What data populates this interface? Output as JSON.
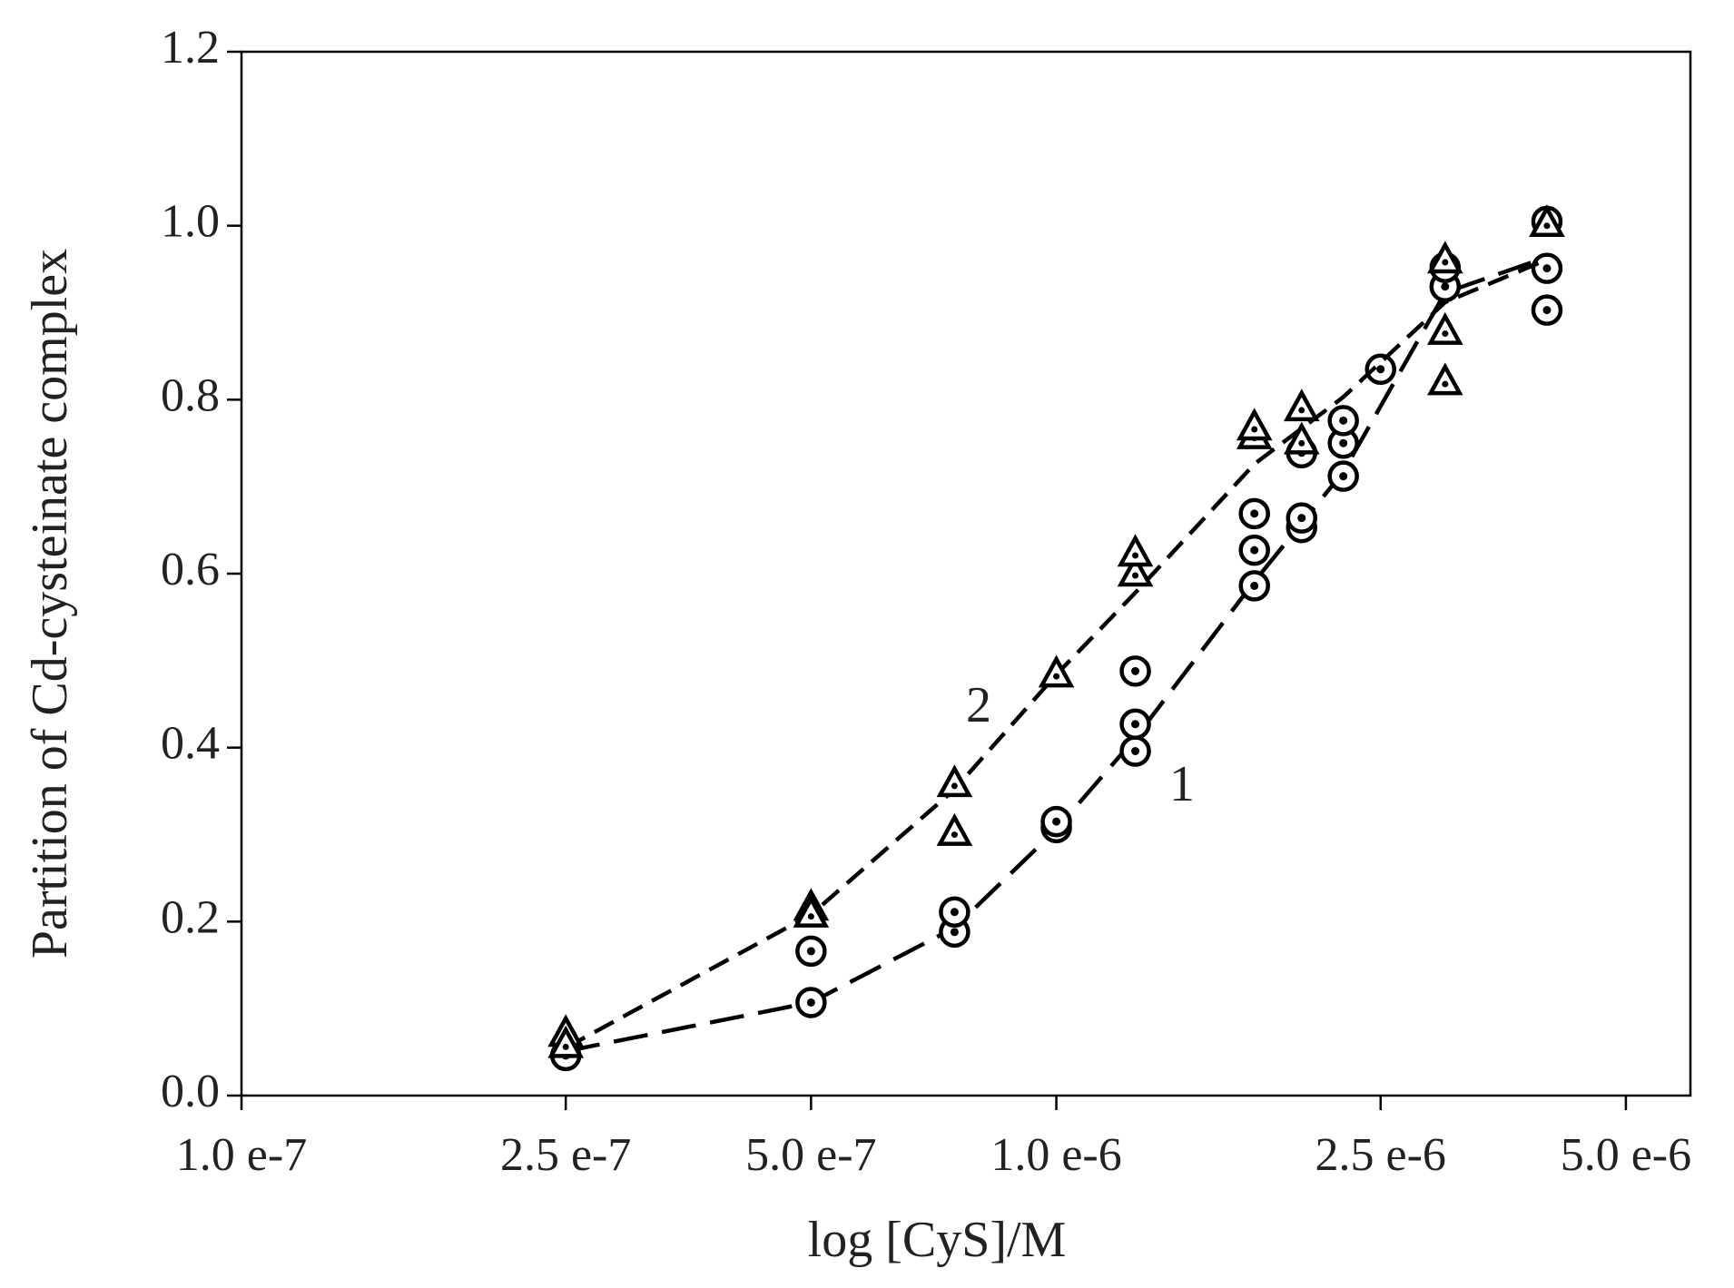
{
  "chart_data": {
    "type": "scatter",
    "xlabel": "log [CyS]/M",
    "ylabel": "Partition of Cd-cysteinate complex",
    "log_x": true,
    "xlim": [
      1e-07,
      6e-06
    ],
    "xticks": [
      {
        "value": 1e-07,
        "label": "1.0 e-7"
      },
      {
        "value": 2.5e-07,
        "label": "2.5 e-7"
      },
      {
        "value": 5e-07,
        "label": "5.0 e-7"
      },
      {
        "value": 1e-06,
        "label": "1.0 e-6"
      },
      {
        "value": 2.5e-06,
        "label": "2.5 e-6"
      },
      {
        "value": 5e-06,
        "label": "5.0 e-6"
      }
    ],
    "ylim": [
      0,
      1.2
    ],
    "yticks": [
      {
        "value": 0,
        "label": "0.0"
      },
      {
        "value": 0.2,
        "label": "0.2"
      },
      {
        "value": 0.4,
        "label": "0.4"
      },
      {
        "value": 0.6,
        "label": "0.6"
      },
      {
        "value": 0.8,
        "label": "0.8"
      },
      {
        "value": 1,
        "label": "1.0"
      },
      {
        "value": 1.2,
        "label": "1.2"
      }
    ],
    "series": [
      {
        "name": "1",
        "marker": "circle",
        "color": "#000000",
        "x": [
          2.5e-07,
          5e-07,
          5e-07,
          7.5e-07,
          7.5e-07,
          1e-06,
          1e-06,
          1.25e-06,
          1.25e-06,
          1.25e-06,
          1.75e-06,
          1.75e-06,
          1.75e-06,
          2e-06,
          2e-06,
          2e-06,
          2.25e-06,
          2.25e-06,
          2.25e-06,
          2.5e-06,
          3e-06,
          3e-06,
          4e-06,
          4e-06,
          4e-06
        ],
        "values": [
          0.046,
          0.107,
          0.166,
          0.188,
          0.211,
          0.308,
          0.315,
          0.396,
          0.427,
          0.488,
          0.586,
          0.627,
          0.669,
          0.653,
          0.664,
          0.739,
          0.712,
          0.75,
          0.776,
          0.835,
          0.93,
          0.952,
          0.903,
          0.951,
          1.005
        ],
        "curve_x": [
          2.5e-07,
          5e-07,
          7.5e-07,
          1e-06,
          1.25e-06,
          1.75e-06,
          2.25e-06,
          3e-06,
          4e-06
        ],
        "curve_values": [
          0.051,
          0.107,
          0.193,
          0.306,
          0.411,
          0.591,
          0.717,
          0.923,
          0.964
        ],
        "dash": "38 16"
      },
      {
        "name": "2",
        "marker": "triangle",
        "color": "#000000",
        "x": [
          2.5e-07,
          2.5e-07,
          5e-07,
          5e-07,
          7.5e-07,
          7.5e-07,
          1e-06,
          1.25e-06,
          1.25e-06,
          1.75e-06,
          1.75e-06,
          2e-06,
          2e-06,
          3e-06,
          3e-06,
          3e-06,
          4e-06
        ],
        "values": [
          0.071,
          0.058,
          0.216,
          0.208,
          0.302,
          0.358,
          0.484,
          0.6,
          0.623,
          0.758,
          0.768,
          0.752,
          0.79,
          0.82,
          0.878,
          0.96,
          1.002
        ],
        "curve_x": [
          2.5e-07,
          5e-07,
          7.5e-07,
          1e-06,
          1.25e-06,
          1.75e-06,
          2.25e-06,
          3e-06,
          4e-06
        ],
        "curve_values": [
          0.055,
          0.208,
          0.352,
          0.484,
          0.578,
          0.726,
          0.803,
          0.912,
          0.961
        ],
        "dash": "24 12"
      }
    ]
  }
}
